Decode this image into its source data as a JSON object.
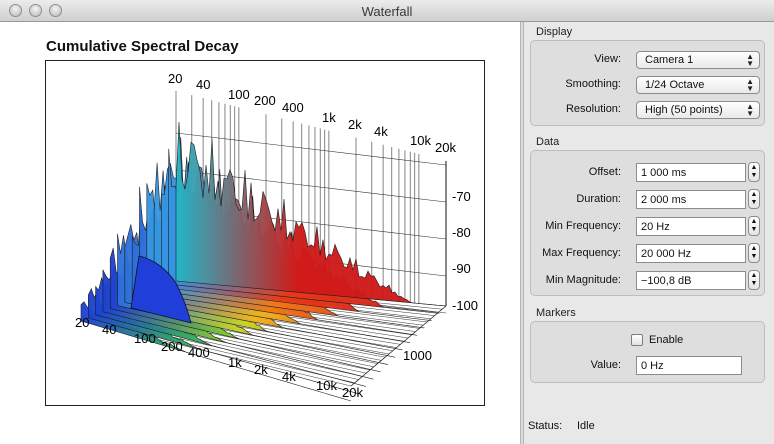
{
  "window": {
    "title": "Waterfall"
  },
  "plot": {
    "title": "Cumulative Spectral Decay",
    "freq_back_labels": [
      "20",
      "40",
      "100",
      "200",
      "400",
      "1k",
      "2k",
      "4k",
      "10k",
      "20k"
    ],
    "freq_front_labels": [
      "20",
      "40",
      "100",
      "200",
      "400",
      "1k",
      "2k",
      "4k",
      "10k",
      "20k"
    ],
    "magnitude_labels": [
      "-70",
      "-80",
      "-90",
      "-100"
    ],
    "time_label": "1000"
  },
  "display": {
    "title": "Display",
    "view_label": "View:",
    "view_value": "Camera 1",
    "smoothing_label": "Smoothing:",
    "smoothing_value": "1/24 Octave",
    "resolution_label": "Resolution:",
    "resolution_value": "High (50 points)"
  },
  "data": {
    "title": "Data",
    "offset_label": "Offset:",
    "offset_value": "1 000 ms",
    "duration_label": "Duration:",
    "duration_value": "2 000 ms",
    "min_freq_label": "Min Frequency:",
    "min_freq_value": "20 Hz",
    "max_freq_label": "Max Frequency:",
    "max_freq_value": "20 000 Hz",
    "min_mag_label": "Min Magnitude:",
    "min_mag_value": "−100,8 dB"
  },
  "markers": {
    "title": "Markers",
    "enable_label": "Enable",
    "value_label": "Value:",
    "value_value": "0 Hz"
  },
  "status": {
    "label": "Status:",
    "value": "Idle"
  }
}
